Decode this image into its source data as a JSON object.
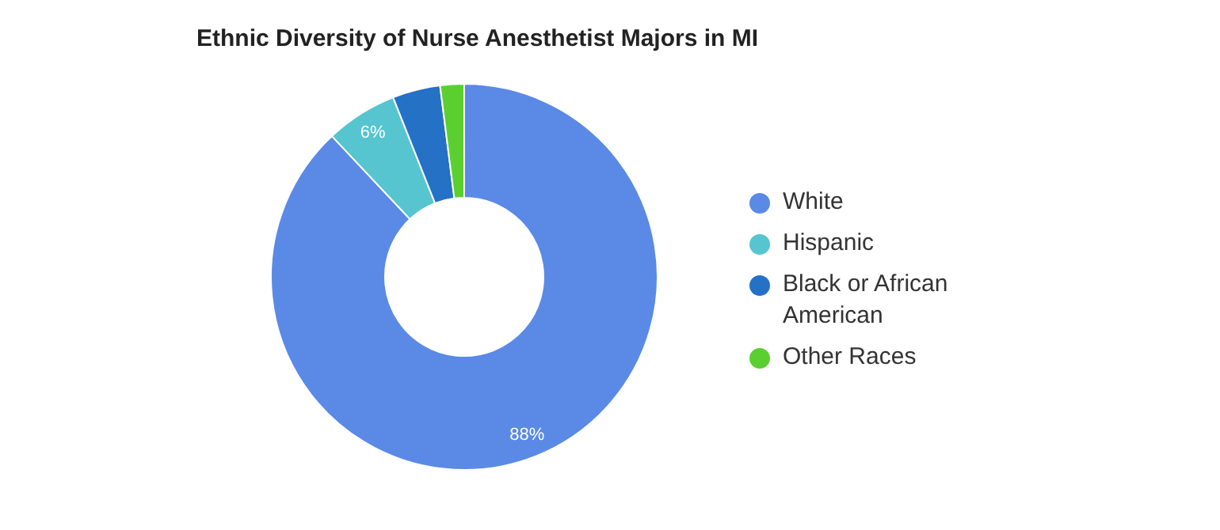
{
  "chart_data": {
    "type": "donut",
    "title": "Ethnic Diversity of Nurse Anesthetist Majors in MI",
    "categories": [
      "White",
      "Hispanic",
      "Black or African American",
      "Other Races"
    ],
    "values": [
      88,
      6,
      4,
      2
    ],
    "colors": [
      "#5a8ae6",
      "#56c5d0",
      "#2471c6",
      "#5ccf30"
    ],
    "value_labels": [
      "88%",
      "6%",
      null,
      null
    ],
    "legend": "right"
  }
}
